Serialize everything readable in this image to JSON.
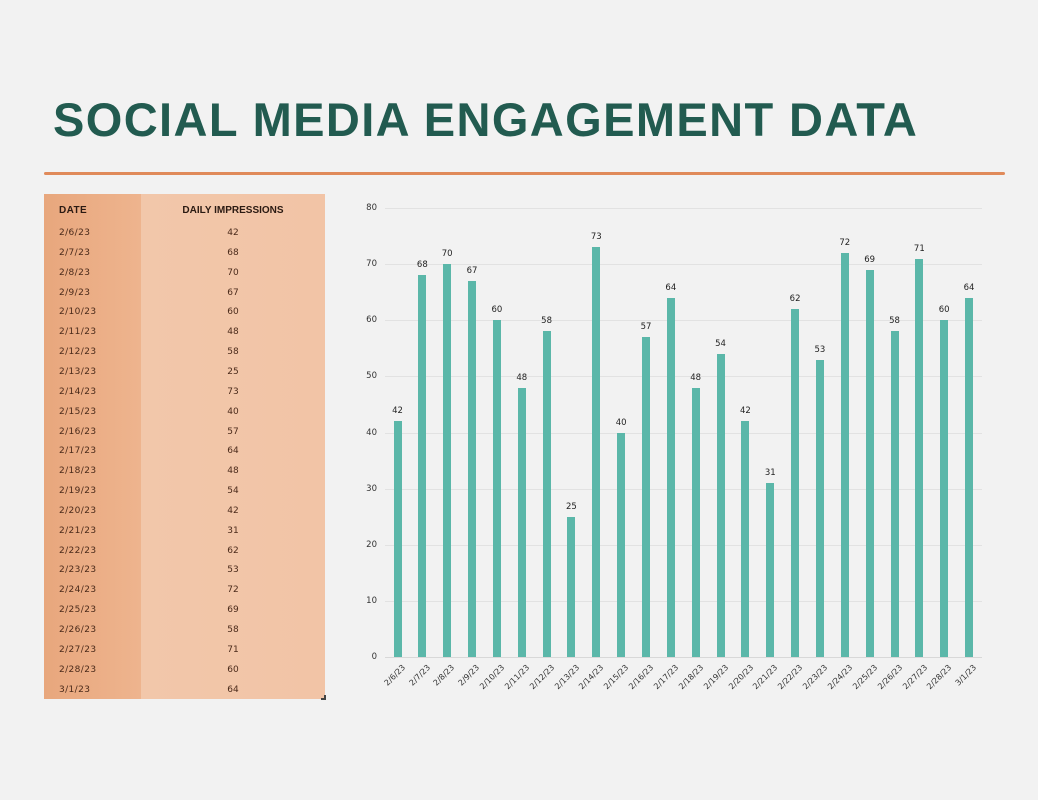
{
  "page": {
    "title": "SOCIAL MEDIA ENGAGEMENT DATA",
    "colors": {
      "title": "#225b50",
      "rule": "#e08a5a",
      "bar": "#5bb7a9",
      "table_date_col": "#e8a77d",
      "table_value_col": "#f2c7aa",
      "background": "#f2f2f2"
    }
  },
  "table": {
    "headers": {
      "date": "DATE",
      "value": "DAILY IMPRESSIONS"
    },
    "rows": [
      {
        "date": "2/6/23",
        "value": "42"
      },
      {
        "date": "2/7/23",
        "value": "68"
      },
      {
        "date": "2/8/23",
        "value": "70"
      },
      {
        "date": "2/9/23",
        "value": "67"
      },
      {
        "date": "2/10/23",
        "value": "60"
      },
      {
        "date": "2/11/23",
        "value": "48"
      },
      {
        "date": "2/12/23",
        "value": "58"
      },
      {
        "date": "2/13/23",
        "value": "25"
      },
      {
        "date": "2/14/23",
        "value": "73"
      },
      {
        "date": "2/15/23",
        "value": "40"
      },
      {
        "date": "2/16/23",
        "value": "57"
      },
      {
        "date": "2/17/23",
        "value": "64"
      },
      {
        "date": "2/18/23",
        "value": "48"
      },
      {
        "date": "2/19/23",
        "value": "54"
      },
      {
        "date": "2/20/23",
        "value": "42"
      },
      {
        "date": "2/21/23",
        "value": "31"
      },
      {
        "date": "2/22/23",
        "value": "62"
      },
      {
        "date": "2/23/23",
        "value": "53"
      },
      {
        "date": "2/24/23",
        "value": "72"
      },
      {
        "date": "2/25/23",
        "value": "69"
      },
      {
        "date": "2/26/23",
        "value": "58"
      },
      {
        "date": "2/27/23",
        "value": "71"
      },
      {
        "date": "2/28/23",
        "value": "60"
      },
      {
        "date": "3/1/23",
        "value": "64"
      }
    ]
  },
  "chart_data": {
    "type": "bar",
    "title": "",
    "xlabel": "",
    "ylabel": "",
    "ylim": [
      0,
      80
    ],
    "yticks": [
      0,
      10,
      20,
      30,
      40,
      50,
      60,
      70,
      80
    ],
    "grid": true,
    "legend": "none",
    "data_labels": true,
    "categories": [
      "2/6/23",
      "2/7/23",
      "2/8/23",
      "2/9/23",
      "2/10/23",
      "2/11/23",
      "2/12/23",
      "2/13/23",
      "2/14/23",
      "2/15/23",
      "2/16/23",
      "2/17/23",
      "2/18/23",
      "2/19/23",
      "2/20/23",
      "2/21/23",
      "2/22/23",
      "2/23/23",
      "2/24/23",
      "2/25/23",
      "2/26/23",
      "2/27/23",
      "2/28/23",
      "3/1/23"
    ],
    "series": [
      {
        "name": "Daily Impressions",
        "color": "#5bb7a9",
        "values": [
          42,
          68,
          70,
          67,
          60,
          48,
          58,
          25,
          73,
          40,
          57,
          64,
          48,
          54,
          42,
          31,
          62,
          53,
          72,
          69,
          58,
          71,
          60,
          64
        ]
      }
    ]
  }
}
